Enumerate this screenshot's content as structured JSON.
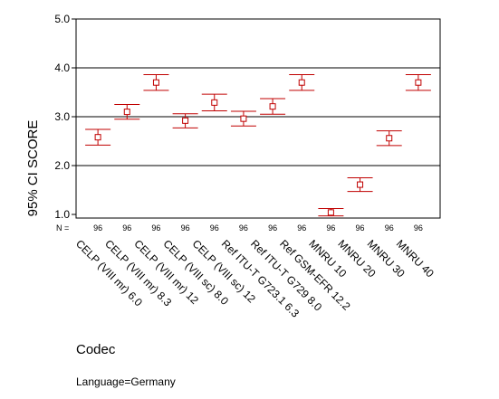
{
  "chart_data": {
    "type": "errorbar",
    "title": "",
    "xlabel": "Codec",
    "ylabel": "95% CI SCORE",
    "ylim": [
      1.0,
      5.0
    ],
    "yticks": [
      "1.0",
      "2.0",
      "3.0",
      "4.0",
      "5.0"
    ],
    "grid_y": [
      2.0,
      3.0,
      4.0
    ],
    "n_prefix": "N =",
    "series_color": "#c00000",
    "categories": [
      "CELP (VIII mr) 6.0",
      "CELP (VIII mr) 8.3",
      "CELP (VIII mr) 12",
      "CELP (VIII sc) 8.0",
      "CELP (VIII sc) 12",
      "Ref ITU-T G723.1 6.3",
      "Ref ITU-T G729 8.0",
      "Ref GSM-EFR 12.2",
      "MNRU 10",
      "MNRU 20",
      "MNRU 30",
      "MNRU 40"
    ],
    "n": [
      "96",
      "96",
      "96",
      "96",
      "96",
      "96",
      "96",
      "96",
      "96",
      "96",
      "96",
      "96"
    ],
    "mean": [
      2.58,
      3.1,
      3.7,
      2.92,
      3.29,
      2.96,
      3.21,
      3.7,
      1.04,
      1.61,
      2.56,
      3.7
    ],
    "lower": [
      2.42,
      2.95,
      3.54,
      2.77,
      3.12,
      2.81,
      3.05,
      3.54,
      0.97,
      1.47,
      2.41,
      3.54
    ],
    "upper": [
      2.74,
      3.25,
      3.86,
      3.06,
      3.46,
      3.11,
      3.37,
      3.86,
      1.12,
      1.75,
      2.71,
      3.86
    ]
  },
  "footnote": "Language=Germany"
}
